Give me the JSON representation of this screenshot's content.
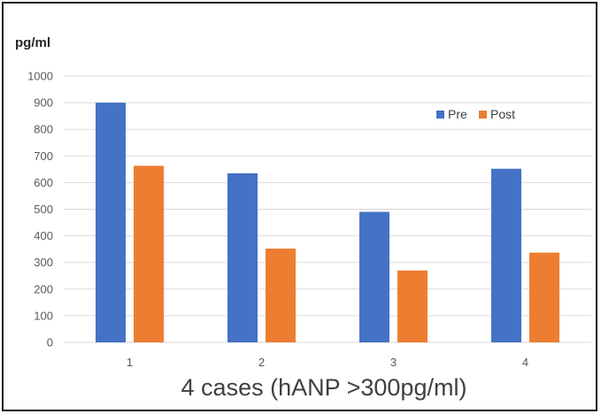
{
  "chart_data": {
    "type": "bar",
    "categories": [
      "1",
      "2",
      "3",
      "4"
    ],
    "series": [
      {
        "name": "Pre",
        "color": "#4472c4",
        "values": [
          900,
          635,
          490,
          652
        ]
      },
      {
        "name": "Post",
        "color": "#ed7d31",
        "values": [
          663,
          352,
          270,
          337
        ]
      }
    ],
    "y_unit": "pg/ml",
    "xlabel": "4 cases (hANP >300pg/ml)",
    "ylim": [
      0,
      1000
    ],
    "yticks": [
      0,
      100,
      200,
      300,
      400,
      500,
      600,
      700,
      800,
      900,
      1000
    ],
    "grid": true,
    "legend_position": "top-right"
  }
}
